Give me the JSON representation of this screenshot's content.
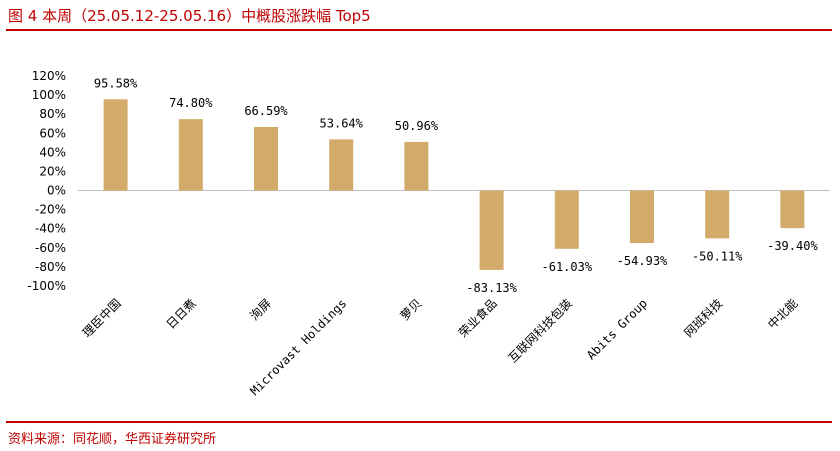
{
  "header": {
    "title": "图 4  本周（25.05.12-25.05.16）中概股涨跌幅 Top5"
  },
  "footer": {
    "source": "资料来源：同花顺，华西证券研究所"
  },
  "colors": {
    "accent": "#c00000",
    "bar": "#d4aa6a",
    "axis": "#bfbfbf"
  },
  "chart_data": {
    "type": "bar",
    "title": "",
    "xlabel": "",
    "ylabel": "",
    "ylim": [
      -100,
      120
    ],
    "ytick_step": 20,
    "yticks": [
      "120%",
      "100%",
      "80%",
      "60%",
      "40%",
      "20%",
      "0%",
      "-20%",
      "-40%",
      "-60%",
      "-80%",
      "-100%"
    ],
    "categories": [
      "理臣中国",
      "日日煮",
      "洵屏",
      "Microvast Holdings",
      "萝贝",
      "荣业食品",
      "互联网科技包装",
      "Abits Group",
      "网班科技",
      "中北能"
    ],
    "values": [
      95.58,
      74.8,
      66.59,
      53.64,
      50.96,
      -83.13,
      -61.03,
      -54.93,
      -50.11,
      -39.4
    ],
    "labels": [
      "95.58%",
      "74.80%",
      "66.59%",
      "53.64%",
      "50.96%",
      "-83.13%",
      "-61.03%",
      "-54.93%",
      "-50.11%",
      "-39.40%"
    ]
  }
}
